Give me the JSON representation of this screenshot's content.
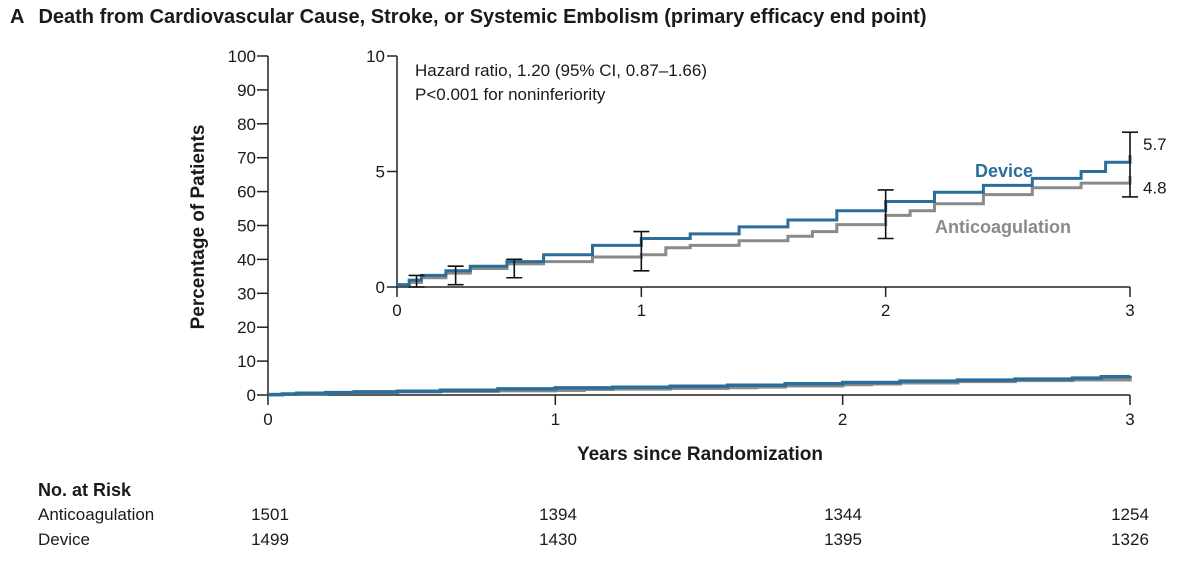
{
  "panel": {
    "letter": "A",
    "title": "Death from Cardiovascular Cause, Stroke, or Systemic Embolism (primary efficacy end point)"
  },
  "chart_data": {
    "type": "line",
    "xlabel": "Years since Randomization",
    "ylabel": "Percentage of Patients",
    "xlim": [
      0,
      3
    ],
    "ylim": [
      0,
      100
    ],
    "x_ticks": [
      "0",
      "1",
      "2",
      "3"
    ],
    "y_ticks": [
      "0",
      "10",
      "20",
      "30",
      "40",
      "50",
      "60",
      "70",
      "80",
      "90",
      "100"
    ],
    "series": [
      {
        "name": "Device",
        "color": "#2c6e9b",
        "x": [
          0,
          0.05,
          0.1,
          0.2,
          0.3,
          0.45,
          0.6,
          0.8,
          1.0,
          1.2,
          1.4,
          1.6,
          1.8,
          2.0,
          2.2,
          2.4,
          2.6,
          2.8,
          2.9,
          3.0
        ],
        "y": [
          0.1,
          0.3,
          0.5,
          0.7,
          0.9,
          1.1,
          1.4,
          1.8,
          2.1,
          2.3,
          2.6,
          2.9,
          3.3,
          3.7,
          4.1,
          4.4,
          4.7,
          5.0,
          5.4,
          5.7
        ],
        "end_label": "5.7"
      },
      {
        "name": "Anticoagulation",
        "color": "#8a8a8a",
        "x": [
          0,
          0.05,
          0.1,
          0.2,
          0.3,
          0.45,
          0.6,
          0.8,
          1.0,
          1.1,
          1.2,
          1.4,
          1.6,
          1.7,
          1.8,
          2.0,
          2.1,
          2.2,
          2.4,
          2.6,
          2.8,
          3.0
        ],
        "y": [
          0.1,
          0.2,
          0.4,
          0.6,
          0.8,
          1.0,
          1.1,
          1.3,
          1.4,
          1.7,
          1.8,
          2.0,
          2.2,
          2.4,
          2.7,
          3.1,
          3.3,
          3.6,
          4.0,
          4.3,
          4.5,
          4.8
        ],
        "end_label": "4.8"
      }
    ],
    "error_bars": [
      {
        "x": 0.08,
        "low": 0.0,
        "high": 0.5
      },
      {
        "x": 0.24,
        "low": 0.1,
        "high": 0.9
      },
      {
        "x": 0.48,
        "low": 0.4,
        "high": 1.2
      },
      {
        "x": 1.0,
        "low": 0.7,
        "high": 2.4
      },
      {
        "x": 2.0,
        "low": 2.1,
        "high": 4.2
      },
      {
        "x": 3.0,
        "low": 3.9,
        "high": 6.7
      }
    ],
    "inset": {
      "xlim": [
        0,
        3
      ],
      "ylim": [
        0,
        10
      ],
      "x_ticks": [
        "0",
        "1",
        "2",
        "3"
      ],
      "y_ticks": [
        "0",
        "5",
        "10"
      ],
      "annotation_line1": "Hazard ratio, 1.20 (95% CI, 0.87–1.66)",
      "annotation_line2": "P<0.001 for noninferiority"
    }
  },
  "risk_table": {
    "title": "No. at Risk",
    "rows": [
      {
        "label": "Anticoagulation",
        "values": [
          "1501",
          "1394",
          "1344",
          "1254"
        ]
      },
      {
        "label": "Device",
        "values": [
          "1499",
          "1430",
          "1395",
          "1326"
        ]
      }
    ]
  }
}
